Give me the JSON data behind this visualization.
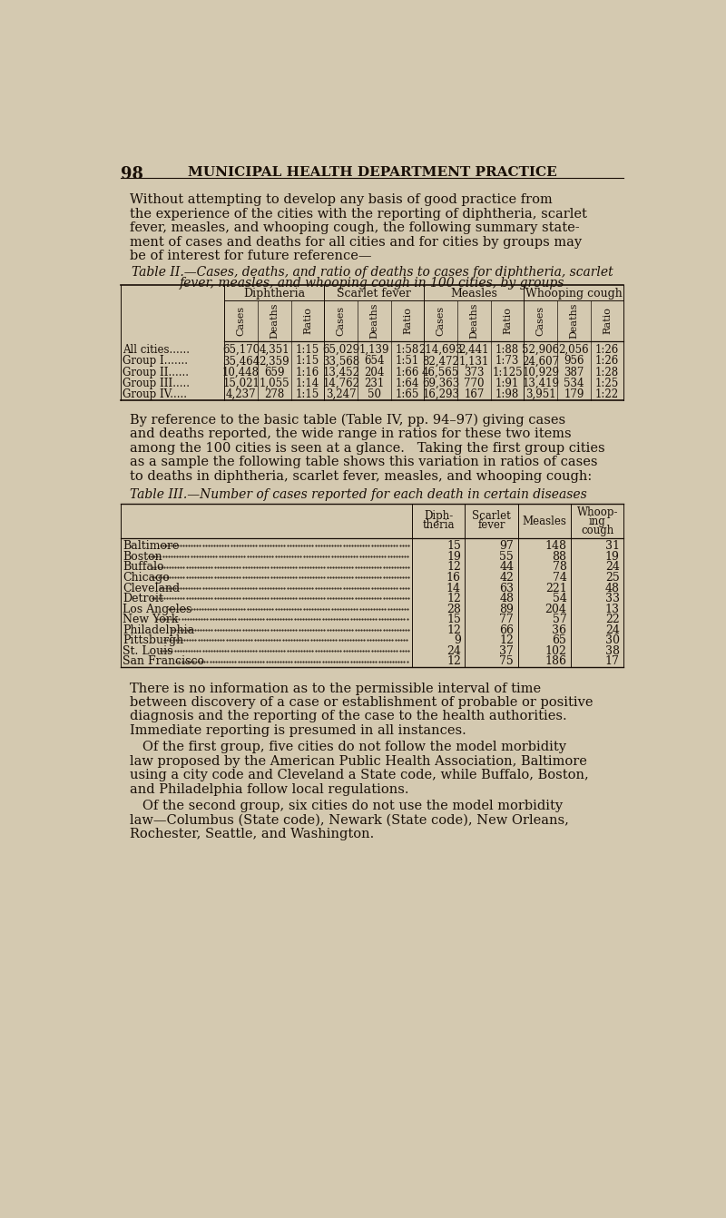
{
  "bg_color": "#d4c9b0",
  "text_color": "#1a1008",
  "page_number": "98",
  "header": "MUNICIPAL HEALTH DEPARTMENT PRACTICE",
  "table2_col_groups": [
    "Diphtheria",
    "Scarlet fever",
    "Measles",
    "Whooping cough"
  ],
  "table2_subcols": [
    "Cases",
    "Deaths",
    "Ratio"
  ],
  "table2_rows": [
    [
      "All cities......",
      "65,170",
      "4,351",
      "1:15",
      "65,029",
      "1,139",
      "1:58",
      "214,693",
      "2,441",
      "1:88",
      "52,906",
      "2,056",
      "1:26"
    ],
    [
      "Group I.......",
      "35,464",
      "2,359",
      "1:15",
      "33,568",
      "654",
      "1:51",
      "82,472",
      "1,131",
      "1:73",
      "24,607",
      "956",
      "1:26"
    ],
    [
      "Group II......",
      "10,448",
      "659",
      "1:16",
      "13,452",
      "204",
      "1:66",
      "46,565",
      "373",
      "1:125",
      "10,929",
      "387",
      "1:28"
    ],
    [
      "Group III.....",
      "15,021",
      "1,055",
      "1:14",
      "14,762",
      "231",
      "1:64",
      "69,363",
      "770",
      "1:91",
      "13,419",
      "534",
      "1:25"
    ],
    [
      "Group IV.....",
      "4,237",
      "278",
      "1:15",
      "3,247",
      "50",
      "1:65",
      "16,293",
      "167",
      "1:98",
      "3,951",
      "179",
      "1:22"
    ]
  ],
  "table3_title": "Table III.—Number of cases reported for each death in certain diseases",
  "table3_headers": [
    "Diph-\ntheria",
    "Scarlet\nfever",
    "Measles",
    "Whoop-\ning\ncough"
  ],
  "table3_rows": [
    [
      "Baltimore",
      "15",
      "97",
      "148",
      "31"
    ],
    [
      "Boston",
      "19",
      "55",
      "88",
      "19"
    ],
    [
      "Buffalo",
      "12",
      "44",
      "78",
      "24"
    ],
    [
      "Chicago",
      "16",
      "42",
      "74",
      "25"
    ],
    [
      "Cleveland",
      "14",
      "63",
      "221",
      "48"
    ],
    [
      "Detroit",
      "12",
      "48",
      "54",
      "33"
    ],
    [
      "Los Angeles",
      "28",
      "89",
      "204",
      "13"
    ],
    [
      "New York",
      "15",
      "77",
      "57",
      "22"
    ],
    [
      "Philadelphia",
      "12",
      "66",
      "36",
      "24"
    ],
    [
      "Pittsburgh",
      "9",
      "12",
      "65",
      "30"
    ],
    [
      "St. Louis",
      "24",
      "37",
      "102",
      "38"
    ],
    [
      "San Francisco",
      "12",
      "75",
      "186",
      "17"
    ]
  ]
}
